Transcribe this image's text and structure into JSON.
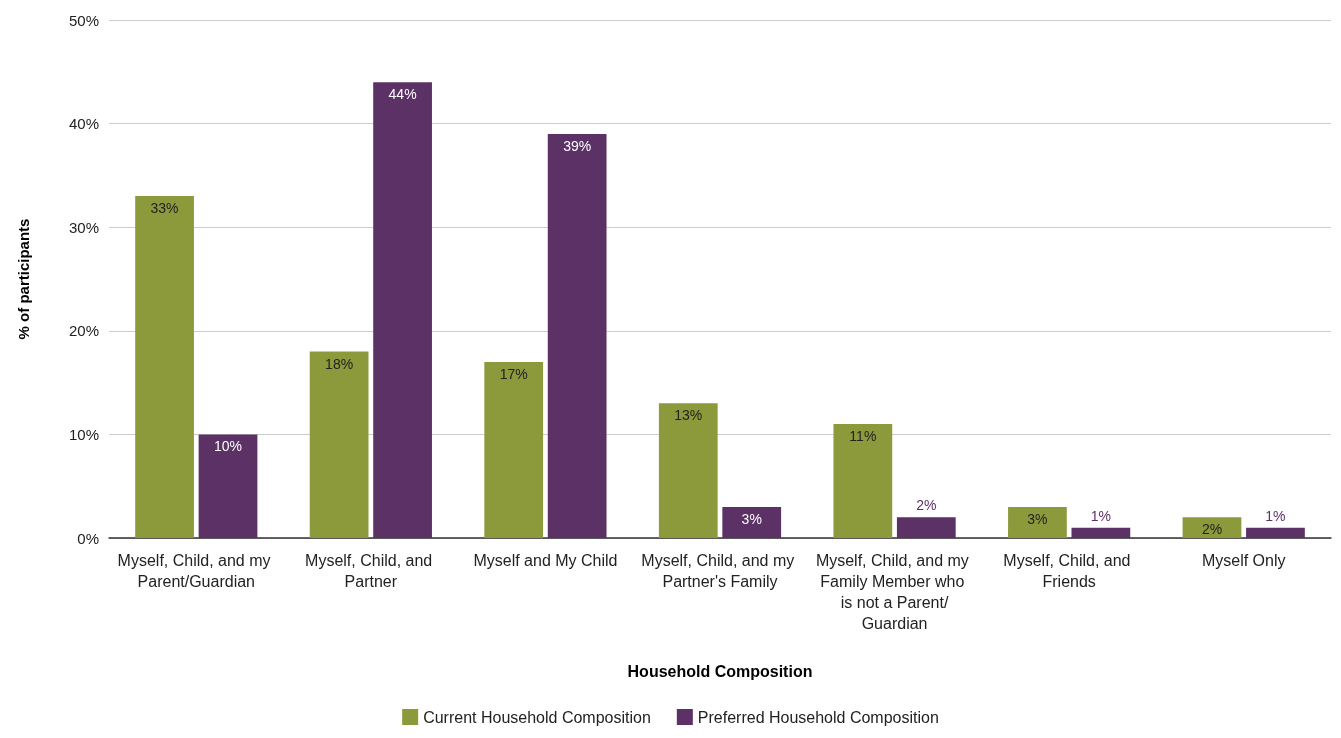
{
  "chart_data": {
    "type": "bar",
    "xlabel": "Household Composition",
    "ylabel": "% of participants",
    "categories": [
      "Myself, Child, and my Parent/Guardian",
      "Myself, Child, and Partner",
      "Myself and My Child",
      "Myself, Child, and my Partner's Family",
      "Myself, Child, and my Family Member who is not a Parent/Guardian",
      "Myself, Child, and Friends",
      "Myself Only"
    ],
    "series": [
      {
        "name": "Current Household Composition",
        "color": "#8d9a3b",
        "values": [
          33,
          18,
          17,
          13,
          11,
          3,
          2
        ],
        "value_labels": [
          "33%",
          "18%",
          "17%",
          "13%",
          "11%",
          "3%",
          "2%"
        ]
      },
      {
        "name": "Preferred Household Composition",
        "color": "#5c3166",
        "values": [
          10,
          44,
          39,
          3,
          2,
          1,
          1
        ],
        "value_labels": [
          "10%",
          "44%",
          "39%",
          "3%",
          "2%",
          "1%",
          "1%"
        ]
      }
    ],
    "ylim": [
      0,
      50
    ],
    "yticks": [
      {
        "value": 0,
        "label": "0%"
      },
      {
        "value": 10,
        "label": "10%"
      },
      {
        "value": 20,
        "label": "20%"
      },
      {
        "value": 30,
        "label": "30%"
      },
      {
        "value": 40,
        "label": "40%"
      },
      {
        "value": 50,
        "label": "50%"
      }
    ],
    "grid": "y",
    "legend": "bottom"
  }
}
